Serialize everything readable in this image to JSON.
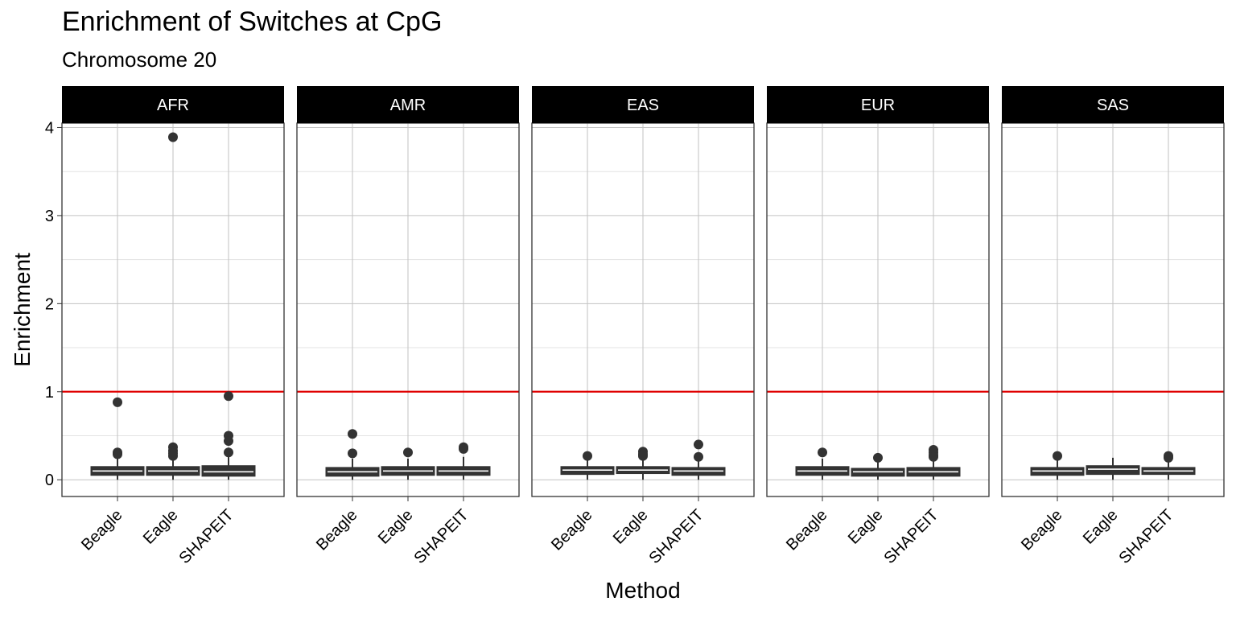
{
  "chart_data": {
    "type": "box",
    "title": "Enrichment of Switches at CpG",
    "subtitle": "Chromosome 20",
    "xlabel": "Method",
    "ylabel": "Enrichment",
    "ylim": [
      -0.19,
      4.05
    ],
    "yticks": [
      0,
      1,
      2,
      3,
      4
    ],
    "categories": [
      "Beagle",
      "Eagle",
      "SHAPEIT"
    ],
    "reference_line": {
      "y": 1,
      "color": "#e00000"
    },
    "grid": true,
    "facets": [
      {
        "label": "AFR",
        "boxes": [
          {
            "method": "Beagle",
            "min": 0.0,
            "q1": 0.05,
            "median": 0.1,
            "q3": 0.15,
            "max": 0.24,
            "outliers": [
              0.88,
              0.31,
              0.29
            ]
          },
          {
            "method": "Eagle",
            "min": 0.0,
            "q1": 0.05,
            "median": 0.1,
            "q3": 0.15,
            "max": 0.24,
            "outliers": [
              3.89,
              0.37,
              0.33,
              0.3,
              0.27
            ]
          },
          {
            "method": "SHAPEIT",
            "min": 0.0,
            "q1": 0.04,
            "median": 0.09,
            "q3": 0.16,
            "max": 0.27,
            "outliers": [
              0.95,
              0.5,
              0.44,
              0.31
            ]
          }
        ]
      },
      {
        "label": "AMR",
        "boxes": [
          {
            "method": "Beagle",
            "min": 0.0,
            "q1": 0.04,
            "median": 0.09,
            "q3": 0.14,
            "max": 0.24,
            "outliers": [
              0.52,
              0.3
            ]
          },
          {
            "method": "Eagle",
            "min": 0.0,
            "q1": 0.05,
            "median": 0.1,
            "q3": 0.15,
            "max": 0.24,
            "outliers": [
              0.31
            ]
          },
          {
            "method": "SHAPEIT",
            "min": 0.0,
            "q1": 0.05,
            "median": 0.1,
            "q3": 0.15,
            "max": 0.26,
            "outliers": [
              0.37,
              0.35
            ]
          }
        ]
      },
      {
        "label": "EAS",
        "boxes": [
          {
            "method": "Beagle",
            "min": 0.0,
            "q1": 0.06,
            "median": 0.11,
            "q3": 0.15,
            "max": 0.22,
            "outliers": [
              0.27
            ]
          },
          {
            "method": "Eagle",
            "min": 0.0,
            "q1": 0.07,
            "median": 0.11,
            "q3": 0.15,
            "max": 0.22,
            "outliers": [
              0.32,
              0.29,
              0.27
            ]
          },
          {
            "method": "SHAPEIT",
            "min": 0.0,
            "q1": 0.05,
            "median": 0.1,
            "q3": 0.14,
            "max": 0.22,
            "outliers": [
              0.4,
              0.26
            ]
          }
        ]
      },
      {
        "label": "EUR",
        "boxes": [
          {
            "method": "Beagle",
            "min": 0.0,
            "q1": 0.05,
            "median": 0.1,
            "q3": 0.15,
            "max": 0.24,
            "outliers": [
              0.31
            ]
          },
          {
            "method": "Eagle",
            "min": 0.0,
            "q1": 0.04,
            "median": 0.09,
            "q3": 0.13,
            "max": 0.2,
            "outliers": [
              0.25
            ]
          },
          {
            "method": "SHAPEIT",
            "min": 0.0,
            "q1": 0.04,
            "median": 0.09,
            "q3": 0.14,
            "max": 0.22,
            "outliers": [
              0.34,
              0.31,
              0.28,
              0.26
            ]
          }
        ]
      },
      {
        "label": "SAS",
        "boxes": [
          {
            "method": "Beagle",
            "min": 0.0,
            "q1": 0.05,
            "median": 0.1,
            "q3": 0.14,
            "max": 0.22,
            "outliers": [
              0.27
            ]
          },
          {
            "method": "Eagle",
            "min": 0.0,
            "q1": 0.06,
            "median": 0.12,
            "q3": 0.16,
            "max": 0.25,
            "outliers": []
          },
          {
            "method": "SHAPEIT",
            "min": 0.0,
            "q1": 0.06,
            "median": 0.1,
            "q3": 0.14,
            "max": 0.22,
            "outliers": [
              0.27,
              0.25
            ]
          }
        ]
      }
    ]
  }
}
